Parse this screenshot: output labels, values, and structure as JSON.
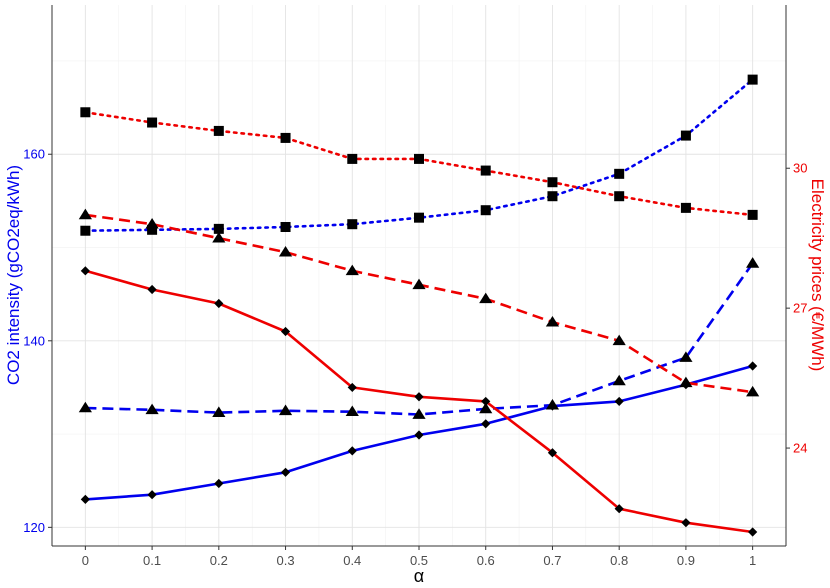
{
  "chart_data": {
    "type": "line",
    "xlabel": "α",
    "ylabel_left": "CO2 intensity (gCO2eq/kWh)",
    "ylabel_right": "Electricity prices (€/MWh)",
    "x": [
      0,
      0.1,
      0.2,
      0.3,
      0.4,
      0.5,
      0.6,
      0.7,
      0.8,
      0.9,
      1
    ],
    "x_tick_labels": [
      "0",
      "0.1",
      "0.2",
      "0.3",
      "0.4",
      "0.5",
      "0.6",
      "0.7",
      "0.8",
      "0.9",
      "1"
    ],
    "xlim": [
      -0.05,
      1.05
    ],
    "ylim_left": [
      118,
      176
    ],
    "ylim_right": [
      21.9,
      33.5
    ],
    "y_left_ticks": [
      120,
      140,
      160
    ],
    "y_right_ticks": [
      24,
      27,
      30
    ],
    "grid": true,
    "colors": {
      "co2": "#0000ee",
      "price": "#ee0000",
      "marker": "#000000",
      "axis_text_left": "#0000ee",
      "axis_text_right": "#ee0000",
      "x_text": "#4d4d4d"
    },
    "series": [
      {
        "axis": "left",
        "color": "co2",
        "linestyle": "solid",
        "marker": "diamond",
        "values": [
          123.0,
          123.5,
          124.7,
          125.9,
          128.2,
          129.9,
          131.1,
          133.0,
          133.5,
          135.3,
          137.3
        ]
      },
      {
        "axis": "left",
        "color": "co2",
        "linestyle": "dashed",
        "marker": "triangle",
        "values": [
          132.8,
          132.6,
          132.3,
          132.5,
          132.4,
          132.1,
          132.7,
          133.1,
          135.7,
          138.2,
          148.3
        ]
      },
      {
        "axis": "left",
        "color": "co2",
        "linestyle": "dotted",
        "marker": "square",
        "values": [
          151.8,
          151.9,
          152.0,
          152.2,
          152.5,
          153.2,
          154.0,
          155.5,
          157.9,
          162.0,
          168.0
        ]
      },
      {
        "axis": "right",
        "color": "price",
        "linestyle": "solid",
        "marker": "diamond",
        "values": [
          27.8,
          27.4,
          27.1,
          26.5,
          25.3,
          25.1,
          25.0,
          23.9,
          22.7,
          22.4,
          22.2
        ]
      },
      {
        "axis": "right",
        "color": "price",
        "linestyle": "dashed",
        "marker": "triangle",
        "values": [
          29.0,
          28.8,
          28.5,
          28.2,
          27.8,
          27.5,
          27.2,
          26.7,
          26.3,
          25.4,
          25.2
        ]
      },
      {
        "axis": "right",
        "color": "price",
        "linestyle": "dotted",
        "marker": "square",
        "values": [
          31.2,
          30.98,
          30.8,
          30.65,
          30.2,
          30.2,
          29.95,
          29.7,
          29.4,
          29.15,
          29.0
        ]
      }
    ]
  }
}
